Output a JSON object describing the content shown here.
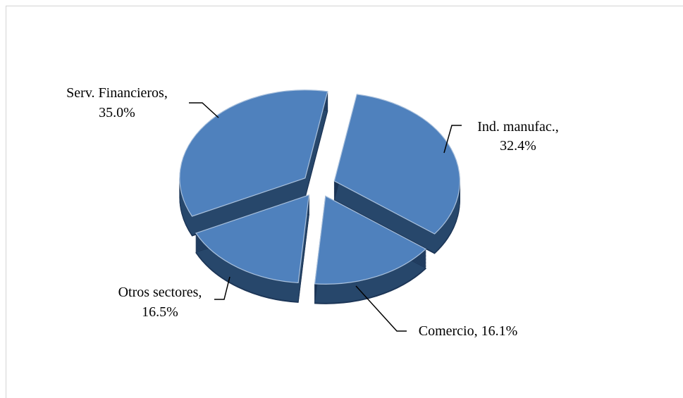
{
  "chart_data": {
    "type": "pie",
    "style": "3d-exploded",
    "title": "",
    "slices": [
      {
        "label": "Ind. manufac.",
        "value": 32.4,
        "text": "32.4%"
      },
      {
        "label": "Comercio",
        "value": 16.1,
        "text": "16.1%"
      },
      {
        "label": "Otros sectores",
        "value": 16.5,
        "text": "16.5%"
      },
      {
        "label": "Serv. Financieros",
        "value": 35.0,
        "text": "35.0%"
      }
    ],
    "colors": {
      "top": "#4f81bd",
      "side": "#27476b",
      "side_dark": "#1c3556",
      "edge": "#a9c0dc"
    }
  },
  "labels": {
    "ind": {
      "line1": "Ind. manufac.,",
      "line2": "32.4%"
    },
    "com": {
      "line1": "Comercio, 16.1%"
    },
    "otros": {
      "line1": "Otros sectores,",
      "line2": "16.5%"
    },
    "serv": {
      "line1": "Serv. Financieros,",
      "line2": "35.0%"
    }
  }
}
